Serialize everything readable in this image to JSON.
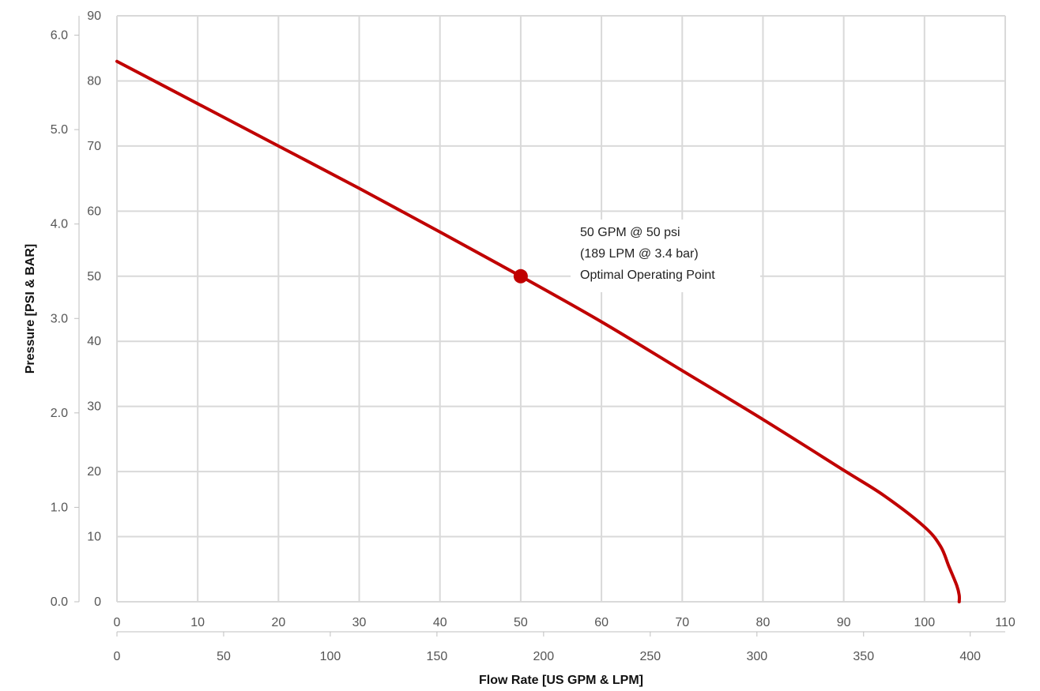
{
  "chart_data": {
    "type": "line",
    "title": "",
    "xlabel": "Flow Rate [US GPM & LPM]",
    "ylabel": "Pressure [PSI & BAR]",
    "grid": true,
    "x_primary": {
      "unit": "US GPM",
      "range": [
        0,
        110
      ],
      "ticks": [
        "0",
        "10",
        "20",
        "30",
        "40",
        "50",
        "60",
        "70",
        "80",
        "90",
        "100",
        "110"
      ]
    },
    "x_secondary": {
      "unit": "LPM",
      "range": [
        0,
        416.4
      ],
      "ticks": [
        "0",
        "50",
        "100",
        "150",
        "200",
        "250",
        "300",
        "350",
        "400"
      ]
    },
    "y_primary": {
      "unit": "PSI",
      "range": [
        0,
        90
      ],
      "ticks": [
        "0",
        "10",
        "20",
        "30",
        "40",
        "50",
        "60",
        "70",
        "80",
        "90"
      ]
    },
    "y_secondary": {
      "unit": "BAR",
      "range": [
        0,
        6.205
      ],
      "ticks": [
        "0.0",
        "1.0",
        "2.0",
        "3.0",
        "4.0",
        "5.0",
        "6.0"
      ]
    },
    "series": [
      {
        "color": "#c00000",
        "x": [
          0,
          10,
          20,
          30,
          40,
          50,
          60,
          70,
          80,
          90,
          95,
          100,
          102,
          103,
          104,
          104.3,
          104.3
        ],
        "y": [
          83,
          76.5,
          70,
          63.5,
          56.8,
          50,
          43,
          35.5,
          28,
          20.2,
          16.3,
          11.5,
          8.5,
          5.5,
          2.5,
          1,
          0
        ]
      }
    ],
    "marker": {
      "x": 50,
      "y": 50,
      "color": "#c00000",
      "annotation": [
        "50 GPM @ 50 psi",
        "(189 LPM @ 3.4 bar)",
        "Optimal Operating Point"
      ]
    }
  }
}
